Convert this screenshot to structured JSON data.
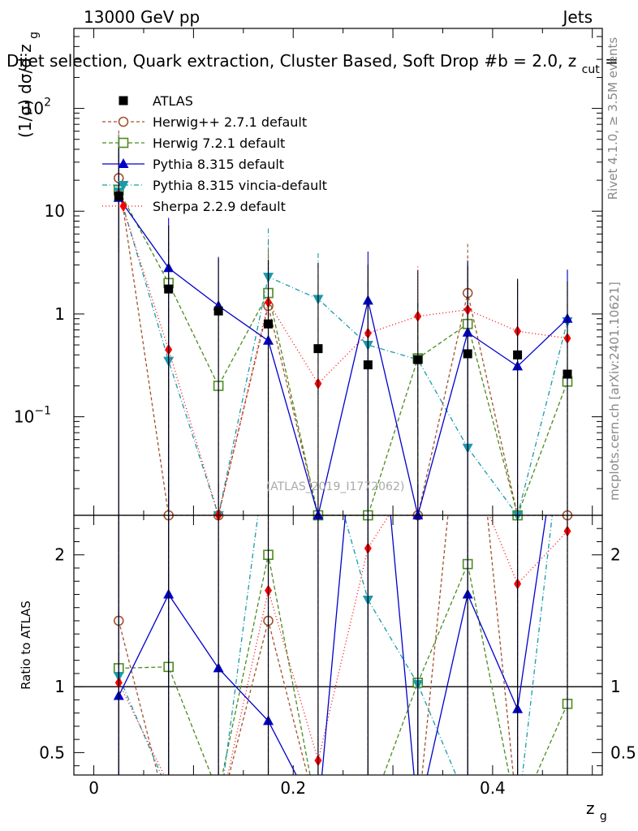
{
  "chart_data": {
    "type": "line",
    "header_left": "13000 GeV pp",
    "header_right": "Jets",
    "title": "Dijet selection, Quark extraction, Cluster Based, Soft Drop #b = 2.0, z",
    "title_sub": "cut",
    "title_tail": " =",
    "ylabel": "(1/σ) dσ/d z",
    "ylabel_sub": "g",
    "ratio_ylabel": "Ratio to ATLAS",
    "xlabel": "z",
    "xlabel_sub": "g",
    "watermark": "(ATLAS_2019_I1772062)",
    "side_label_1": "Rivet 4.1.0, ≥ 3.5M events",
    "side_label_2": "mcplots.cern.ch [arXiv:2401.10621]",
    "xlim": [
      -0.02,
      0.51
    ],
    "ylim_main_log": [
      0.011,
      600
    ],
    "ylim_ratio": [
      0.33,
      2.3
    ],
    "main_yticks": [
      {
        "value": 0.1,
        "label": "10",
        "exp": "−1"
      },
      {
        "value": 1,
        "label": "1"
      },
      {
        "value": 10,
        "label": "10"
      },
      {
        "value": 100,
        "label": "10",
        "exp": "2"
      }
    ],
    "ratio_yticks": [
      {
        "value": 0.5,
        "label": "0.5"
      },
      {
        "value": 1,
        "label": "1"
      },
      {
        "value": 2,
        "label": "2"
      }
    ],
    "xticks": [
      {
        "value": 0,
        "label": "0"
      },
      {
        "value": 0.2,
        "label": "0.2"
      },
      {
        "value": 0.4,
        "label": "0.4"
      }
    ],
    "x": [
      0.025,
      0.075,
      0.125,
      0.175,
      0.225,
      0.275,
      0.325,
      0.375,
      0.425,
      0.475
    ],
    "series": [
      {
        "name": "ATLAS",
        "key": "atlas",
        "color": "#000000",
        "marker": "square-filled",
        "dash": "none",
        "values": [
          14,
          1.75,
          1.07,
          0.8,
          0.46,
          0.32,
          0.36,
          0.41,
          0.4,
          0.26
        ],
        "err_up": [
          35,
          5.5,
          2.4,
          2.6,
          2.7,
          2.7,
          2.3,
          2.6,
          1.8,
          1.8
        ],
        "err_dn": [
          0.011,
          0.011,
          0.011,
          0.011,
          0.011,
          0.011,
          0.011,
          0.011,
          0.011,
          0.011
        ],
        "ratio": [
          1.0,
          1.0,
          1.0,
          1.0,
          1.0,
          1.0,
          1.0,
          1.0,
          1.0,
          1.0
        ]
      },
      {
        "name": "Herwig++ 2.7.1 default",
        "key": "herwigpp",
        "color": "#a0522d",
        "marker": "circle-open",
        "dash": "4,3",
        "values": [
          21,
          0.011,
          0.011,
          1.2,
          0.011,
          0.011,
          0.011,
          1.6,
          0.011,
          0.011
        ],
        "err_up": [
          40,
          0.011,
          0.011,
          2.5,
          0.011,
          0.011,
          0.011,
          3.2,
          0.011,
          0.011
        ],
        "err_dn": [
          4,
          0.011,
          0.011,
          0.011,
          0.011,
          0.011,
          0.011,
          0.011,
          0.011,
          0.011
        ],
        "ratio": [
          1.5,
          0.01,
          0.01,
          1.5,
          0.01,
          0.01,
          0.01,
          3.8,
          0.01,
          0.01
        ]
      },
      {
        "name": "Herwig 7.2.1 default",
        "key": "herwig7",
        "color": "#4b8b1f",
        "marker": "square-open",
        "dash": "5,3",
        "values": [
          16,
          2.0,
          0.2,
          1.6,
          0.011,
          0.011,
          0.37,
          0.8,
          0.011,
          0.22
        ],
        "err_up": [
          40,
          3.0,
          1.0,
          3.5,
          0.011,
          0.011,
          0.9,
          2.5,
          0.011,
          1.0
        ],
        "err_dn": [
          4,
          0.011,
          0.011,
          0.011,
          0.011,
          0.011,
          0.011,
          0.011,
          0.011,
          0.011
        ],
        "ratio": [
          1.14,
          1.15,
          0.19,
          2.0,
          0.01,
          0.01,
          1.03,
          1.93,
          0.01,
          0.87
        ]
      },
      {
        "name": "Pythia 8.315 default",
        "key": "pythia",
        "color": "#0000cc",
        "marker": "triangle-up",
        "dash": "none",
        "values": [
          13.5,
          2.8,
          1.2,
          0.55,
          0.011,
          1.35,
          0.011,
          0.66,
          0.31,
          0.9
        ],
        "err_up": [
          38,
          5.8,
          2.4,
          2.6,
          0.011,
          2.7,
          0.011,
          2.6,
          1.8,
          1.8
        ],
        "err_dn": [
          0.011,
          0.011,
          0.011,
          0.011,
          0.011,
          0.011,
          0.011,
          0.011,
          0.011,
          0.011
        ],
        "ratio": [
          0.93,
          1.7,
          1.14,
          0.74,
          0.01,
          4.2,
          0.01,
          1.7,
          0.83,
          3.4
        ]
      },
      {
        "name": "Pythia 8.315 vincia-default",
        "key": "vincia",
        "color": "#1a9aaa",
        "marker": "triangle-down",
        "dash": "6,3,1,3",
        "values": [
          15.5,
          0.35,
          0.011,
          2.3,
          1.4,
          0.5,
          0.36,
          0.05,
          0.011,
          0.85
        ],
        "err_up": [
          40,
          0.8,
          0.011,
          4.5,
          2.5,
          1.5,
          0.9,
          0.3,
          0.011,
          1.8
        ],
        "err_dn": [
          4,
          0.011,
          0.011,
          0.011,
          0.011,
          0.011,
          0.011,
          0.011,
          0.011,
          0.011
        ],
        "ratio": [
          1.08,
          0.2,
          0.01,
          2.9,
          3.0,
          1.66,
          1.02,
          0.12,
          0.01,
          3.3
        ]
      },
      {
        "name": "Sherpa 2.2.9 default",
        "key": "sherpa",
        "color": "#ff0000",
        "marker": "diamond",
        "dash": "1,3",
        "values": [
          14.5,
          0.45,
          0.011,
          1.3,
          0.21,
          0.65,
          0.95,
          1.1,
          0.68,
          0.58
        ],
        "err_up": [
          38,
          1.2,
          0.011,
          2.8,
          0.9,
          1.7,
          1.95,
          2.5,
          1.4,
          1.8
        ],
        "err_dn": [
          4,
          0.011,
          0.011,
          0.011,
          0.011,
          0.011,
          0.011,
          0.011,
          0.011,
          0.011
        ],
        "ratio": [
          1.03,
          0.26,
          0.01,
          1.73,
          0.44,
          2.05,
          2.65,
          2.7,
          1.78,
          2.18
        ]
      }
    ]
  }
}
